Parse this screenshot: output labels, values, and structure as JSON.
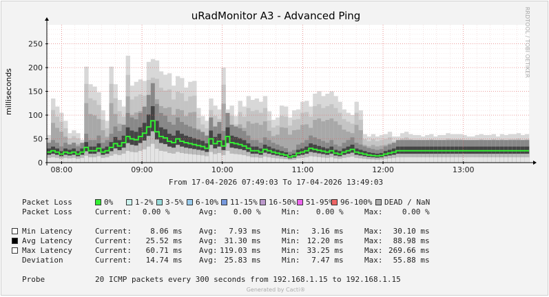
{
  "title": "uRadMonitor A3 - Advanced Ping",
  "side_label": "RRDTOOL / TOBI OETIKER",
  "footer": "Generated by Cacti®",
  "range_text": "From 17-04-2026 07:49:03 To 17-04-2026 13:49:03",
  "legend": {
    "packet_loss_label": "Packet Loss",
    "loss_swatches": [
      {
        "label": "0%",
        "color": "#33ee33"
      },
      {
        "label": "1-2%",
        "color": "#ccf3ee"
      },
      {
        "label": "3-5%",
        "color": "#99dcdc"
      },
      {
        "label": "6-10%",
        "color": "#99ccee"
      },
      {
        "label": "11-15%",
        "color": "#7799dd"
      },
      {
        "label": "16-50%",
        "color": "#bb99cc"
      },
      {
        "label": "51-95%",
        "color": "#ee66ee"
      },
      {
        "label": "96-100%",
        "color": "#ee6666"
      },
      {
        "label": "DEAD / NaN",
        "color": "#aaaaaa"
      }
    ],
    "loss_stats": {
      "label": "Packet Loss",
      "current": "0.00 %",
      "avg": "0.00 %",
      "min": "0.00 %",
      "max": "0.00 %"
    },
    "rows": [
      {
        "label": "Min Latency",
        "swatch": "#ffffff",
        "current": "8.06 ms",
        "avg": "7.93 ms",
        "min": "3.16 ms",
        "max": "30.10 ms"
      },
      {
        "label": "Avg Latency",
        "swatch": "#000000",
        "current": "25.52 ms",
        "avg": "31.30 ms",
        "min": "12.20 ms",
        "max": "88.98 ms"
      },
      {
        "label": "Max Latency",
        "swatch": "#ffffff",
        "current": "60.71 ms",
        "avg": "119.03 ms",
        "min": "33.25 ms",
        "max": "269.66 ms"
      },
      {
        "label": "Deviation",
        "swatch": "",
        "current": "14.74 ms",
        "avg": "25.83 ms",
        "min": "7.47 ms",
        "max": "55.88 ms"
      }
    ],
    "headers": {
      "current": "Current:",
      "avg": "Avg:",
      "min": "Min:",
      "max": "Max:"
    },
    "probe": {
      "label": "Probe",
      "text": "20 ICMP packets every 300 seconds from 192.168.1.15 to 192.168.1.15"
    }
  },
  "chart_data": {
    "type": "area",
    "ylabel": "milliseconds",
    "ylim": [
      0,
      290
    ],
    "yticks": [
      0,
      50,
      100,
      150,
      200,
      250
    ],
    "x_time_start": "07:49",
    "x_time_end": "13:49",
    "xticks": [
      "08:00",
      "09:00",
      "10:00",
      "11:00",
      "12:00",
      "13:00"
    ],
    "grid": true,
    "series": [
      {
        "name": "Max Latency",
        "values": [
          58,
          135,
          118,
          105,
          88,
          62,
          68,
          62,
          48,
          202,
          165,
          160,
          148,
          110,
          88,
          202,
          165,
          132,
          118,
          225,
          162,
          170,
          175,
          172,
          212,
          218,
          215,
          192,
          185,
          188,
          162,
          182,
          178,
          158,
          170,
          172,
          115,
          98,
          88,
          135,
          120,
          112,
          200,
          112,
          120,
          98,
          130,
          118,
          140,
          132,
          135,
          128,
          140,
          108,
          90,
          95,
          120,
          118,
          95,
          110,
          112,
          128,
          130,
          118,
          145,
          150,
          140,
          145,
          150,
          140,
          128,
          112,
          105,
          100,
          128,
          110,
          60,
          55,
          60,
          55,
          58,
          60,
          65,
          55,
          55,
          62,
          65,
          60,
          58,
          58,
          55,
          58,
          60,
          55,
          58,
          58,
          62,
          60,
          60,
          60,
          58,
          55,
          55,
          58,
          60,
          58,
          58,
          60,
          55,
          60,
          58,
          60,
          60,
          62,
          58,
          60
        ]
      },
      {
        "name": "Avg Latency",
        "values": [
          22,
          25,
          22,
          18,
          22,
          20,
          22,
          18,
          22,
          32,
          25,
          25,
          30,
          22,
          25,
          32,
          40,
          35,
          42,
          55,
          50,
          48,
          55,
          62,
          75,
          88,
          65,
          55,
          52,
          45,
          42,
          50,
          45,
          42,
          40,
          38,
          36,
          34,
          30,
          50,
          40,
          45,
          35,
          55,
          42,
          40,
          38,
          35,
          30,
          25,
          25,
          22,
          28,
          25,
          22,
          20,
          18,
          16,
          12,
          14,
          20,
          22,
          25,
          30,
          28,
          26,
          24,
          22,
          25,
          20,
          18,
          22,
          25,
          28,
          22,
          20,
          18,
          16,
          15,
          14,
          15,
          18,
          20,
          22,
          25,
          25,
          25,
          25,
          25,
          25,
          25,
          25,
          25,
          25,
          25,
          25,
          25,
          25,
          25,
          25,
          25,
          25,
          25,
          25,
          25,
          25,
          25,
          25,
          25,
          25,
          25,
          25,
          25,
          25,
          25,
          25
        ]
      }
    ]
  }
}
